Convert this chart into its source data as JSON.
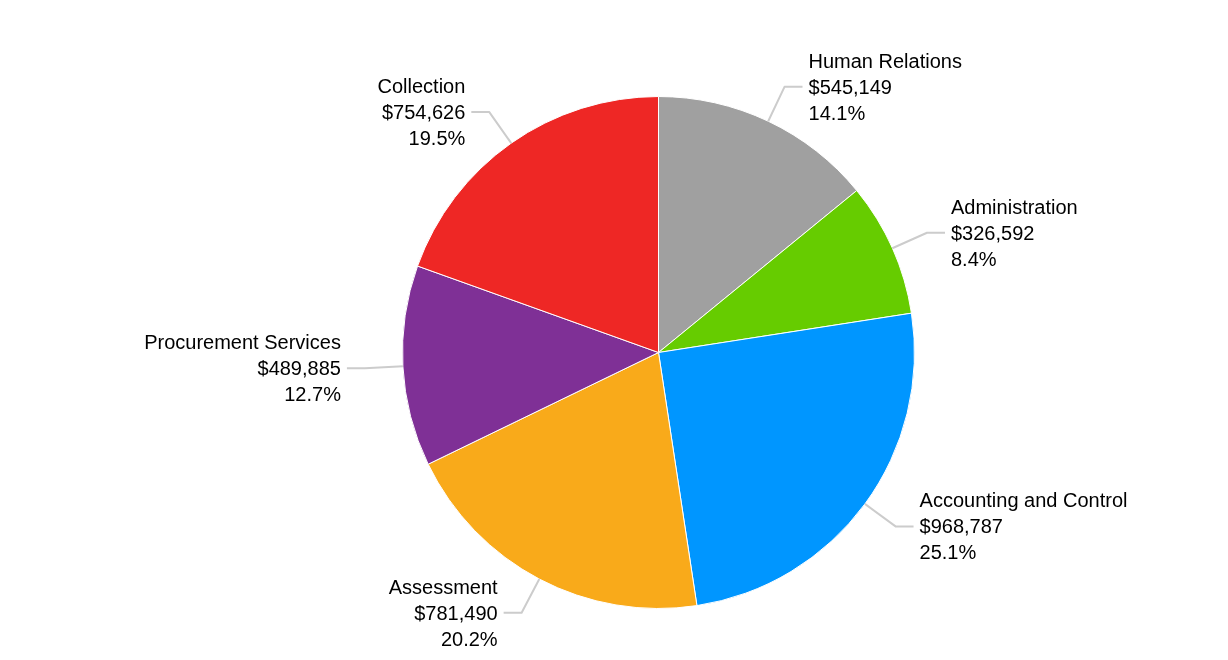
{
  "chart_data": {
    "type": "pie",
    "categories": [
      "Human Relations",
      "Administration",
      "Accounting and Control",
      "Assessment",
      "Procurement Services",
      "Collection"
    ],
    "values": [
      545149,
      326592,
      968787,
      781490,
      489885,
      754626
    ],
    "colors": [
      "#a0a0a0",
      "#66cc00",
      "#0096ff",
      "#f9aa1a",
      "#7f3096",
      "#ee2725"
    ],
    "value_labels": [
      "$545,149\n14.1%",
      "$326,592\n8.4%",
      "$968,787\n25.1%",
      "$781,490\n20.2%",
      "$489,885\n12.7%",
      "$754,626\n19.5%"
    ]
  }
}
